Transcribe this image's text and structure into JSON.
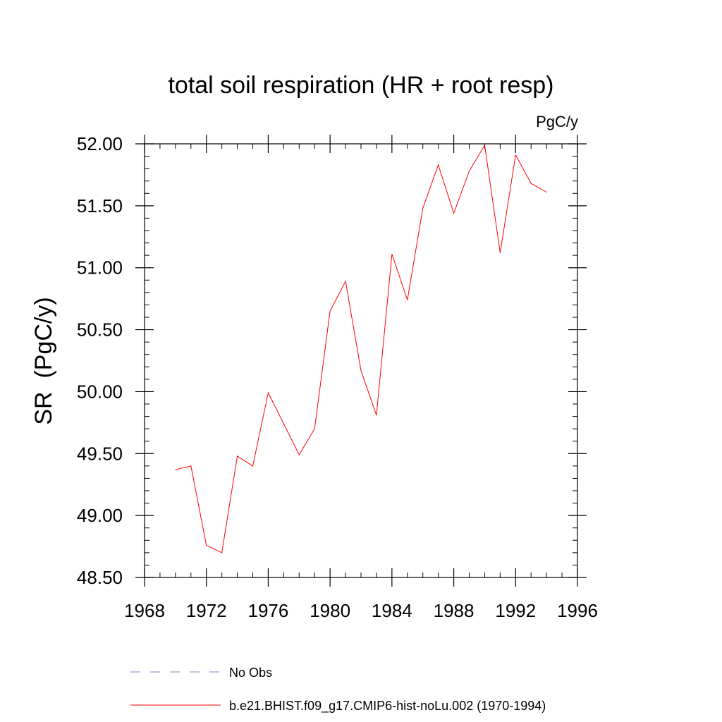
{
  "chart_data": {
    "type": "line",
    "title": "total soil respiration (HR + root resp)",
    "units_label": "PgC/y",
    "ylabel": "SR  (PgC/y)",
    "xlabel": "",
    "xlim": [
      1968,
      1996
    ],
    "ylim": [
      48.5,
      52.0
    ],
    "x_ticks": [
      1968,
      1972,
      1976,
      1980,
      1984,
      1988,
      1992,
      1996
    ],
    "x_tick_labels": [
      "1968",
      "1972",
      "1976",
      "1980",
      "1984",
      "1988",
      "1992",
      "1996"
    ],
    "x_minor_step": 1,
    "y_ticks": [
      48.5,
      49.0,
      49.5,
      50.0,
      50.5,
      51.0,
      51.5,
      52.0
    ],
    "y_tick_labels": [
      "48.50",
      "49.00",
      "49.50",
      "50.00",
      "50.50",
      "51.00",
      "51.50",
      "52.00"
    ],
    "y_minor_step": 0.1,
    "grid": false,
    "legend_position": "bottom",
    "series": [
      {
        "name": "b.e21.BHIST.f09_g17.CMIP6-hist-noLu.002 (1970-1994)",
        "color": "#ff0000",
        "dash": "solid",
        "x": [
          1970,
          1971,
          1972,
          1973,
          1974,
          1975,
          1976,
          1977,
          1978,
          1979,
          1980,
          1981,
          1982,
          1983,
          1984,
          1985,
          1986,
          1987,
          1988,
          1989,
          1990,
          1991,
          1992,
          1993,
          1994
        ],
        "y": [
          49.37,
          49.4,
          48.76,
          48.7,
          49.48,
          49.4,
          49.99,
          49.74,
          49.49,
          49.7,
          50.65,
          50.89,
          50.17,
          49.81,
          51.11,
          50.74,
          51.48,
          51.83,
          51.44,
          51.78,
          51.99,
          51.12,
          51.91,
          51.68,
          51.61
        ]
      }
    ],
    "legend": [
      {
        "label": "No Obs",
        "color": "#8080c0",
        "dash": "dashed"
      },
      {
        "label": "b.e21.BHIST.f09_g17.CMIP6-hist-noLu.002 (1970-1994)",
        "color": "#ff0000",
        "dash": "solid"
      }
    ]
  }
}
